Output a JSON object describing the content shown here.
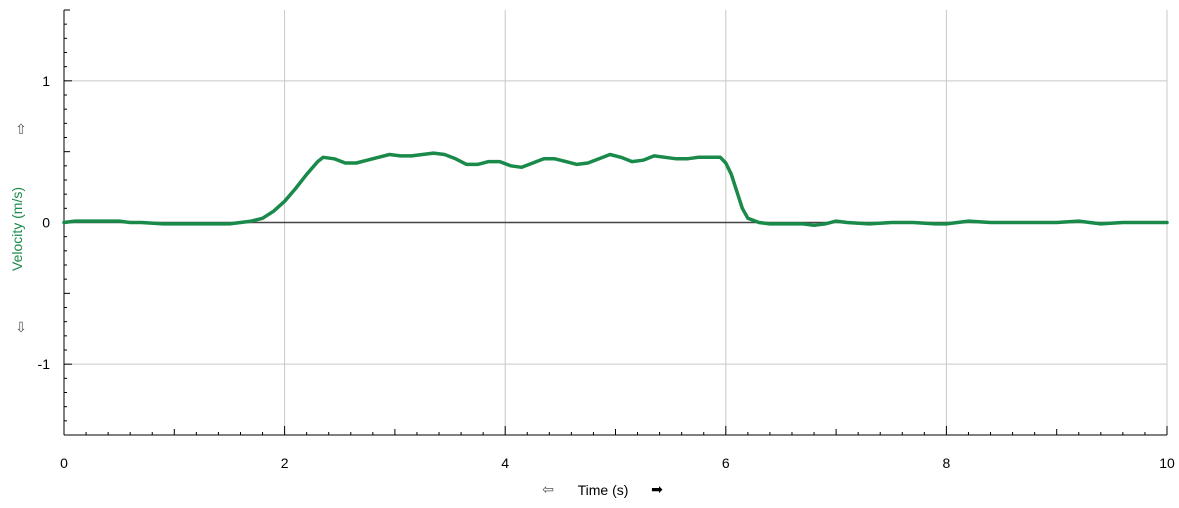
{
  "chart_data": {
    "type": "line",
    "title": "",
    "xlabel": "Time (s)",
    "ylabel": "Velocity (m/s)",
    "xlim": [
      0,
      10
    ],
    "ylim": [
      -1.5,
      1.5
    ],
    "x_ticks": [
      0,
      2,
      4,
      6,
      8,
      10
    ],
    "x_tick_labels": [
      "0",
      "2",
      "4",
      "6",
      "8",
      "10"
    ],
    "y_ticks": [
      -1,
      0,
      1
    ],
    "y_tick_labels": [
      "-1",
      "0",
      "1"
    ],
    "grid": true,
    "legend": "none",
    "series": [
      {
        "name": "",
        "color": "#1a8a4a",
        "x": [
          0,
          0.1,
          0.3,
          0.5,
          0.6,
          0.7,
          0.9,
          1.1,
          1.3,
          1.5,
          1.6,
          1.7,
          1.8,
          1.9,
          2.0,
          2.1,
          2.2,
          2.3,
          2.35,
          2.45,
          2.55,
          2.65,
          2.75,
          2.85,
          2.95,
          3.05,
          3.15,
          3.25,
          3.35,
          3.45,
          3.55,
          3.65,
          3.75,
          3.85,
          3.95,
          4.05,
          4.15,
          4.25,
          4.35,
          4.45,
          4.55,
          4.65,
          4.75,
          4.85,
          4.95,
          5.05,
          5.15,
          5.25,
          5.35,
          5.45,
          5.55,
          5.65,
          5.75,
          5.85,
          5.95,
          6.0,
          6.05,
          6.1,
          6.15,
          6.2,
          6.3,
          6.4,
          6.5,
          6.6,
          6.7,
          6.8,
          6.9,
          7.0,
          7.1,
          7.3,
          7.5,
          7.7,
          7.9,
          8.0,
          8.2,
          8.4,
          8.6,
          8.8,
          9.0,
          9.2,
          9.4,
          9.6,
          9.8,
          10.0
        ],
        "values": [
          0.0,
          0.01,
          0.01,
          0.01,
          0.0,
          0.0,
          -0.01,
          -0.01,
          -0.01,
          -0.01,
          0.0,
          0.01,
          0.03,
          0.08,
          0.15,
          0.24,
          0.34,
          0.43,
          0.46,
          0.45,
          0.42,
          0.42,
          0.44,
          0.46,
          0.48,
          0.47,
          0.47,
          0.48,
          0.49,
          0.48,
          0.45,
          0.41,
          0.41,
          0.43,
          0.43,
          0.4,
          0.39,
          0.42,
          0.45,
          0.45,
          0.43,
          0.41,
          0.42,
          0.45,
          0.48,
          0.46,
          0.43,
          0.44,
          0.47,
          0.46,
          0.45,
          0.45,
          0.46,
          0.46,
          0.46,
          0.42,
          0.34,
          0.22,
          0.1,
          0.03,
          0.0,
          -0.01,
          -0.01,
          -0.01,
          -0.01,
          -0.02,
          -0.01,
          0.01,
          0.0,
          -0.01,
          0.0,
          0.0,
          -0.01,
          -0.01,
          0.01,
          0.0,
          0.0,
          0.0,
          0.0,
          0.01,
          -0.01,
          0.0,
          0.0,
          0.0
        ]
      }
    ]
  },
  "colors": {
    "line": "#1a8a4a",
    "ylabel": "#1a8a4a",
    "grid": "#c8c8c8",
    "zero_line": "#444444",
    "axis": "#000000"
  },
  "icons": {
    "y_up_arrow": "⇧",
    "y_down_arrow": "⇩",
    "x_left_arrow": "⇦",
    "x_right_arrow": "➡"
  }
}
